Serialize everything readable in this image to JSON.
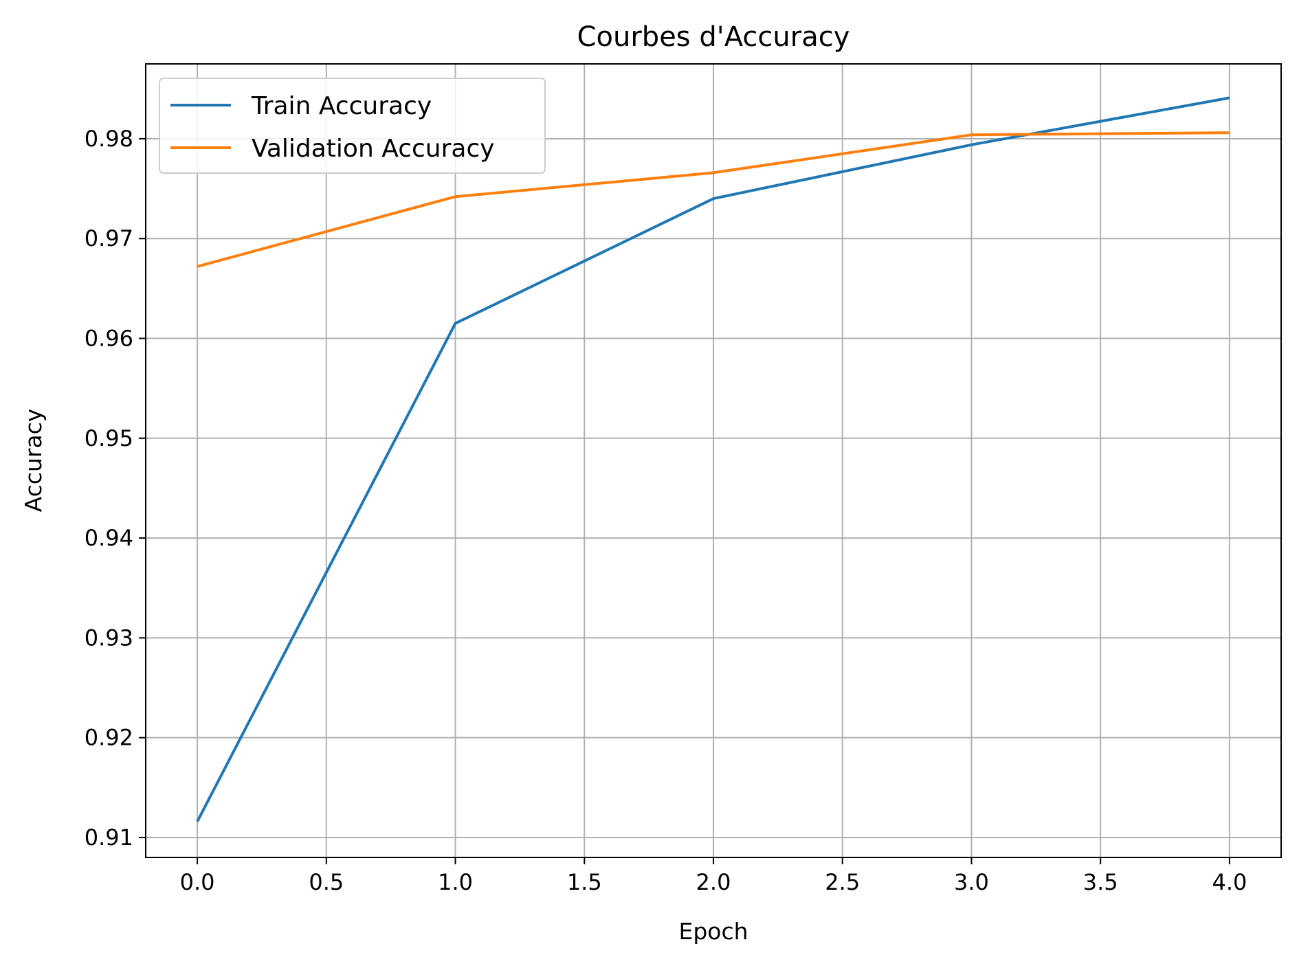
{
  "chart_data": {
    "type": "line",
    "title": "Courbes d'Accuracy",
    "xlabel": "Epoch",
    "ylabel": "Accuracy",
    "xlim": [
      -0.2,
      4.2
    ],
    "ylim": [
      0.908,
      0.9875
    ],
    "xticks": [
      0.0,
      0.5,
      1.0,
      1.5,
      2.0,
      2.5,
      3.0,
      3.5,
      4.0
    ],
    "xtick_labels": [
      "0.0",
      "0.5",
      "1.0",
      "1.5",
      "2.0",
      "2.5",
      "3.0",
      "3.5",
      "4.0"
    ],
    "yticks": [
      0.91,
      0.92,
      0.93,
      0.94,
      0.95,
      0.96,
      0.97,
      0.98
    ],
    "ytick_labels": [
      "0.91",
      "0.92",
      "0.93",
      "0.94",
      "0.95",
      "0.96",
      "0.97",
      "0.98"
    ],
    "x": [
      0,
      1,
      2,
      3,
      4
    ],
    "series": [
      {
        "name": "Train Accuracy",
        "color": "#1f77b4",
        "values": [
          0.9116,
          0.9615,
          0.974,
          0.9794,
          0.9841
        ]
      },
      {
        "name": "Validation Accuracy",
        "color": "#ff7f0e",
        "values": [
          0.9672,
          0.9742,
          0.9766,
          0.9804,
          0.9806
        ]
      }
    ],
    "grid": true,
    "legend_position": "top-left"
  }
}
